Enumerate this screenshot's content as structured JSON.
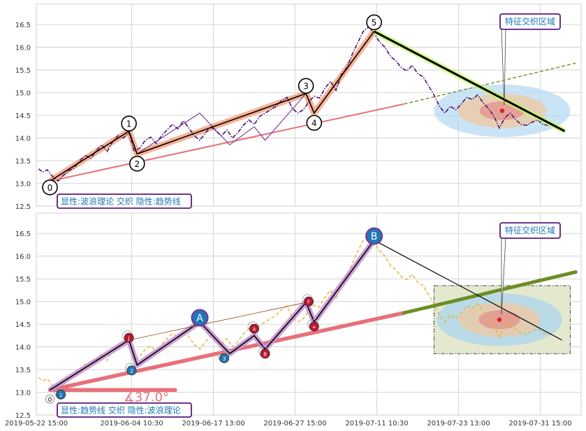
{
  "chart_data": [
    {
      "type": "line",
      "panel": "top",
      "ylim": [
        12.5,
        16.95
      ],
      "yticks": [
        12.5,
        13.0,
        13.5,
        14.0,
        14.5,
        15.0,
        15.5,
        16.0,
        16.5
      ],
      "xlim": [
        0,
        100
      ],
      "grid": true,
      "legend_text": "显性:波浪理论 交织 隐性:趋势线",
      "legend_position": "bottom-left",
      "callout_text": "特征交织区域",
      "callout_position": "top-right",
      "colors": {
        "price": "#4b0f6e",
        "wave_highlight": "#f4a582",
        "wave_line": "#000000",
        "wave_thin": "#7b3294",
        "trendline": "#e8707a",
        "trend_extension": "#6b8e23",
        "decline": "#000000",
        "decline_glow": "#c9f56f",
        "ellipse_outer": "#b3d9f2",
        "ellipse_mid": "#f0c8a0",
        "ellipse_inner": "#e58080",
        "callout_border": "#5b1a7a",
        "callout_text": "#1f77b4",
        "legend_text": "#1f77b4"
      },
      "price_series": [
        [
          0.4,
          13.32
        ],
        [
          1.2,
          13.25
        ],
        [
          2.0,
          13.3
        ],
        [
          3.0,
          13.15
        ],
        [
          4.0,
          13.05
        ],
        [
          5.0,
          13.18
        ],
        [
          6.0,
          13.28
        ],
        [
          7.0,
          13.35
        ],
        [
          8.0,
          13.5
        ],
        [
          9.0,
          13.62
        ],
        [
          10.0,
          13.55
        ],
        [
          11.0,
          13.72
        ],
        [
          12.0,
          13.85
        ],
        [
          13.0,
          13.7
        ],
        [
          14.0,
          13.92
        ],
        [
          15.0,
          14.05
        ],
        [
          16.0,
          14.0
        ],
        [
          17.0,
          14.12
        ],
        [
          18.0,
          13.7
        ],
        [
          19.0,
          13.78
        ],
        [
          20.0,
          13.95
        ],
        [
          21.0,
          14.02
        ],
        [
          22.0,
          13.88
        ],
        [
          23.0,
          14.05
        ],
        [
          24.0,
          14.18
        ],
        [
          25.0,
          14.3
        ],
        [
          26.0,
          14.2
        ],
        [
          27.0,
          14.38
        ],
        [
          28.0,
          14.22
        ],
        [
          29.0,
          14.05
        ],
        [
          30.0,
          13.95
        ],
        [
          31.0,
          14.1
        ],
        [
          32.0,
          14.25
        ],
        [
          33.0,
          14.15
        ],
        [
          34.0,
          14.05
        ],
        [
          35.0,
          14.18
        ],
        [
          36.0,
          14.0
        ],
        [
          37.0,
          14.12
        ],
        [
          38.0,
          14.28
        ],
        [
          39.0,
          14.4
        ],
        [
          40.0,
          14.3
        ],
        [
          41.0,
          14.48
        ],
        [
          42.0,
          14.55
        ],
        [
          43.0,
          14.62
        ],
        [
          44.0,
          14.7
        ],
        [
          45.0,
          14.82
        ],
        [
          46.0,
          14.9
        ],
        [
          47.0,
          14.65
        ],
        [
          48.0,
          14.55
        ],
        [
          49.0,
          14.62
        ],
        [
          50.0,
          14.8
        ],
        [
          51.0,
          14.92
        ],
        [
          52.0,
          14.88
        ],
        [
          53.0,
          15.1
        ],
        [
          54.0,
          15.25
        ],
        [
          55.0,
          15.05
        ],
        [
          56.0,
          15.4
        ],
        [
          57.0,
          15.55
        ],
        [
          58.0,
          15.85
        ],
        [
          59.0,
          16.1
        ],
        [
          60.0,
          16.35
        ],
        [
          61.0,
          16.45
        ],
        [
          62.0,
          16.3
        ],
        [
          63.0,
          16.12
        ],
        [
          64.0,
          16.0
        ],
        [
          65.0,
          15.8
        ],
        [
          66.0,
          15.7
        ],
        [
          67.0,
          15.55
        ],
        [
          68.0,
          15.48
        ],
        [
          69.0,
          15.6
        ],
        [
          70.0,
          15.42
        ],
        [
          71.0,
          15.35
        ],
        [
          72.0,
          15.15
        ],
        [
          73.0,
          14.95
        ],
        [
          74.0,
          14.7
        ],
        [
          75.0,
          14.55
        ],
        [
          76.0,
          14.7
        ],
        [
          77.0,
          14.62
        ],
        [
          78.0,
          14.75
        ],
        [
          79.0,
          14.9
        ],
        [
          80.0,
          14.85
        ],
        [
          81.0,
          14.95
        ],
        [
          82.0,
          14.78
        ],
        [
          83.0,
          14.65
        ],
        [
          84.0,
          14.48
        ],
        [
          85.0,
          14.22
        ],
        [
          86.0,
          14.45
        ],
        [
          87.0,
          14.55
        ],
        [
          88.0,
          14.4
        ],
        [
          89.0,
          14.3
        ],
        [
          90.0,
          14.28
        ],
        [
          91.0,
          14.35
        ],
        [
          92.0,
          14.4
        ],
        [
          93.0,
          14.3
        ],
        [
          94.0,
          14.28
        ],
        [
          95.0,
          14.3
        ]
      ],
      "wave_points": [
        {
          "label": "0",
          "x": 2.5,
          "y": 13.05
        },
        {
          "label": "1",
          "x": 17.0,
          "y": 14.15
        },
        {
          "label": "2",
          "x": 18.5,
          "y": 13.65
        },
        {
          "label": "3",
          "x": 49.5,
          "y": 14.98
        },
        {
          "label": "4",
          "x": 51.0,
          "y": 14.55
        },
        {
          "label": "5",
          "x": 62.0,
          "y": 16.35
        }
      ],
      "wave_thin_path": [
        {
          "x": 2.5,
          "y": 13.05
        },
        {
          "x": 17.0,
          "y": 14.15
        },
        {
          "x": 18.5,
          "y": 13.65
        },
        {
          "x": 30.0,
          "y": 14.55
        },
        {
          "x": 35.5,
          "y": 13.85
        },
        {
          "x": 40.0,
          "y": 14.25
        },
        {
          "x": 42.0,
          "y": 13.95
        },
        {
          "x": 49.5,
          "y": 14.98
        }
      ],
      "trendline": {
        "x0": 2.5,
        "y0": 13.05,
        "x1": 67.5,
        "y1": 14.75
      },
      "trend_extension": {
        "x0": 67.5,
        "y0": 14.75,
        "x1": 99.0,
        "y1": 15.65
      },
      "decline_line": {
        "x0": 62.0,
        "y0": 16.35,
        "x1": 97.0,
        "y1": 14.15
      },
      "ellipse": {
        "cx": 85.5,
        "cy": 14.6,
        "rx_outer": 12.5,
        "ry_outer": 0.58
      },
      "marker": {
        "x": 85.5,
        "y": 14.6
      }
    },
    {
      "type": "line",
      "panel": "bottom",
      "ylim": [
        12.5,
        16.95
      ],
      "yticks": [
        12.5,
        13.0,
        13.5,
        14.0,
        14.5,
        15.0,
        15.5,
        16.0,
        16.5
      ],
      "xlim": [
        0,
        100
      ],
      "grid": true,
      "legend_text": "显性:趋势线 交织 隐性:波浪理论",
      "legend_position": "bottom-left",
      "callout_text": "特征交织区域",
      "callout_position": "top-right",
      "angle_label": "∡37.0°",
      "x_tick_labels": [
        {
          "x": 0,
          "label": "2019-05-22 15:00"
        },
        {
          "x": 17.5,
          "label": "2019-06-04 10:30"
        },
        {
          "x": 32.5,
          "label": "2019-06-17 13:00"
        },
        {
          "x": 47.5,
          "label": "2019-06-27 15:00"
        },
        {
          "x": 62.5,
          "label": "2019-07-11 10:30"
        },
        {
          "x": 77.5,
          "label": "2019-07-23 13:00"
        },
        {
          "x": 92.5,
          "label": "2019-07-31 15:00"
        }
      ],
      "colors": {
        "price": "#e8b23a",
        "wave_highlight": "#c38fd0",
        "wave_line": "#000000",
        "trendline": "#e8707a",
        "trend_extension": "#6b8e23",
        "decline": "#000000",
        "box_fill": "#e3e8cf",
        "box_border": "#333333",
        "ellipse_outer": "#a6d4ef",
        "ellipse_mid": "#f0c8a0",
        "ellipse_inner": "#e58080",
        "node_blue": "#1f77b4",
        "node_red": "#c0152f",
        "callout_border": "#5b1a7a",
        "callout_text": "#1f77b4",
        "legend_text": "#1f77b4",
        "angle_text": "#e8707a"
      },
      "wave_points": [
        {
          "label": "0",
          "x": 2.5,
          "y": 13.05,
          "role": "start"
        },
        {
          "label": "",
          "x": 17.0,
          "y": 14.15,
          "role": "peak"
        },
        {
          "label": "",
          "x": 18.5,
          "y": 13.6,
          "role": "trough"
        },
        {
          "label": "A",
          "x": 30.0,
          "y": 14.55,
          "role": "major"
        },
        {
          "label": "",
          "x": 35.5,
          "y": 13.85,
          "role": "trough"
        },
        {
          "label": "",
          "x": 40.0,
          "y": 14.25,
          "role": "peak"
        },
        {
          "label": "",
          "x": 42.0,
          "y": 13.95,
          "role": "trough"
        },
        {
          "label": "",
          "x": 49.5,
          "y": 14.98,
          "role": "peak"
        },
        {
          "label": "",
          "x": 51.0,
          "y": 14.55,
          "role": "trough"
        },
        {
          "label": "B",
          "x": 62.0,
          "y": 16.35,
          "role": "major"
        }
      ],
      "extra_nodes": [
        {
          "label": "1",
          "x": 4.5,
          "y": 12.95,
          "color": "blue"
        },
        {
          "label": "2",
          "x": 17.5,
          "y": 13.48,
          "color": "blue"
        },
        {
          "label": "3",
          "x": 34.5,
          "y": 13.75,
          "color": "blue"
        },
        {
          "label": "J",
          "x": 17.0,
          "y": 14.2,
          "color": "red"
        },
        {
          "label": "A",
          "x": 40.0,
          "y": 14.4,
          "color": "red"
        },
        {
          "label": "B",
          "x": 42.0,
          "y": 13.85,
          "color": "red"
        },
        {
          "label": "F",
          "x": 50.0,
          "y": 15.0,
          "color": "red"
        },
        {
          "label": "+",
          "x": 51.0,
          "y": 14.45,
          "color": "red"
        }
      ],
      "trendline": {
        "x0": 2.5,
        "y0": 13.05,
        "x1": 67.5,
        "y1": 14.75
      },
      "trend_extension": {
        "x0": 67.5,
        "y0": 14.75,
        "x1": 99.0,
        "y1": 15.65
      },
      "decline_line": {
        "x0": 62.0,
        "y0": 16.35,
        "x1": 96.5,
        "y1": 14.15
      },
      "angle_base": {
        "x0": 2.5,
        "y0": 13.05,
        "x1": 25.5,
        "y1": 13.05
      },
      "box": {
        "x0": 73.0,
        "y0": 13.85,
        "x1": 98.0,
        "y1": 15.35
      },
      "ellipse": {
        "cx": 85.0,
        "cy": 14.6,
        "rx_outer": 11.5,
        "ry_outer": 0.58
      },
      "marker": {
        "x": 85.0,
        "y": 14.6
      }
    }
  ]
}
